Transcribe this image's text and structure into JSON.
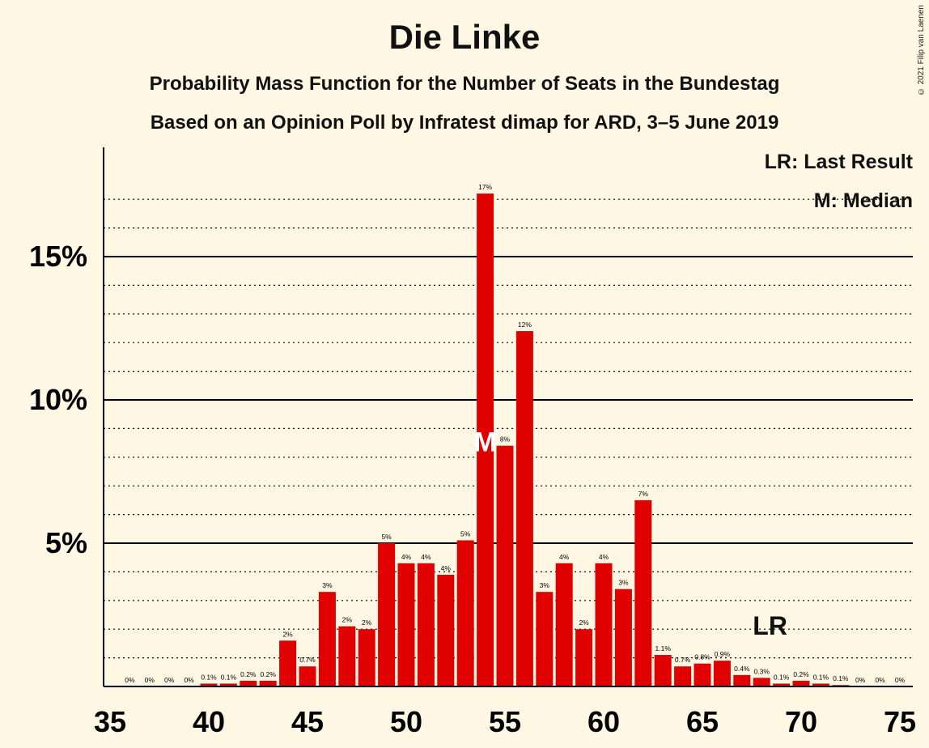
{
  "title": "Die Linke",
  "subtitle1": "Probability Mass Function for the Number of Seats in the Bundestag",
  "subtitle2": "Based on an Opinion Poll by Infratest dimap for ARD, 3–5 June 2019",
  "copyright": "© 2021 Filip van Laenen",
  "legend": {
    "last_result": "LR: Last Result",
    "median": "M: Median"
  },
  "colors": {
    "bar": "#e00000",
    "background": "#fdf7e4",
    "grid": "#000000"
  },
  "chart_data": {
    "type": "bar",
    "x": [
      36,
      37,
      38,
      39,
      40,
      41,
      42,
      43,
      44,
      45,
      46,
      47,
      48,
      49,
      50,
      51,
      52,
      53,
      54,
      55,
      56,
      57,
      58,
      59,
      60,
      61,
      62,
      63,
      64,
      65,
      66,
      67,
      68,
      69,
      70,
      71,
      72,
      73,
      74,
      75
    ],
    "values": [
      0,
      0,
      0,
      0,
      0.1,
      0.1,
      0.2,
      0.2,
      1.6,
      0.7,
      3.3,
      2.1,
      2.0,
      5.0,
      4.3,
      4.3,
      3.9,
      5.1,
      17.2,
      8.4,
      12.4,
      3.3,
      4.3,
      2.0,
      4.3,
      3.4,
      6.5,
      1.1,
      0.7,
      0.8,
      0.9,
      0.4,
      0.3,
      0.1,
      0.2,
      0.1,
      0.05,
      0,
      0,
      0
    ],
    "labels": [
      "0%",
      "0%",
      "0%",
      "0%",
      "0.1%",
      "0.1%",
      "0.2%",
      "0.2%",
      "2%",
      "0.7%",
      "3%",
      "2%",
      "2%",
      "5%",
      "4%",
      "4%",
      "4%",
      "5%",
      "17%",
      "8%",
      "12%",
      "3%",
      "4%",
      "2%",
      "4%",
      "3%",
      "7%",
      "1.1%",
      "0.7%",
      "0.8%",
      "0.9%",
      "0.4%",
      "0.3%",
      "0.1%",
      "0.2%",
      "0.1%",
      "0.1%",
      "0%",
      "0%",
      "0%"
    ],
    "x_ticks": [
      35,
      40,
      45,
      50,
      55,
      60,
      65,
      70,
      75
    ],
    "x_tick_labels": [
      "35",
      "40",
      "45",
      "50",
      "55",
      "60",
      "65",
      "70",
      "75"
    ],
    "y_ticks": [
      5,
      10,
      15
    ],
    "y_tick_labels": [
      "5%",
      "10%",
      "15%"
    ],
    "xlim": [
      35,
      75
    ],
    "ylim": [
      0,
      18.8
    ],
    "median": 54,
    "median_label": "M",
    "last_result": 69,
    "last_result_label": "LR"
  }
}
